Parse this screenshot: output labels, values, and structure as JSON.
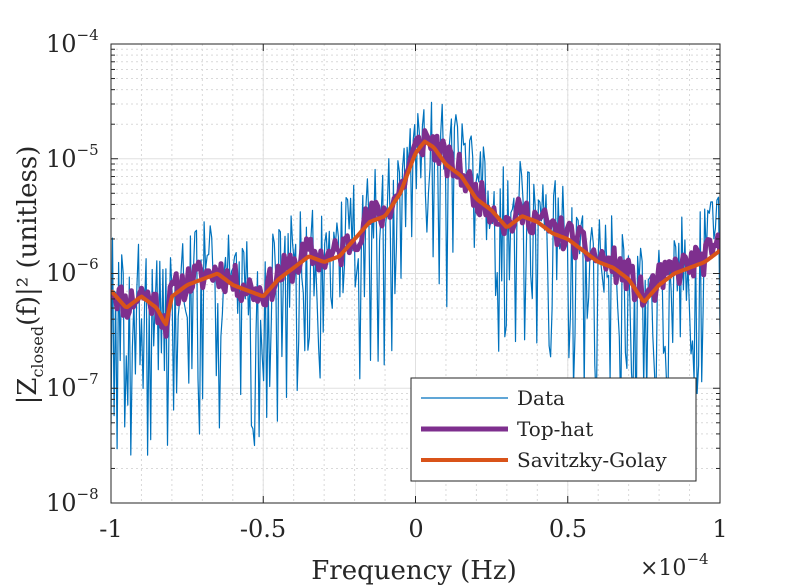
{
  "chart_data": {
    "type": "line",
    "title": "",
    "xlabel": "Frequency (Hz)",
    "xlabel_multiplier": "×10",
    "xlabel_multiplier_exp": "−4",
    "ylabel_main": "|Z",
    "ylabel_sub": "closed",
    "ylabel_rest": "(f)|² (unitless)",
    "xlim": [
      -0.0001,
      0.0001
    ],
    "ylim": [
      1e-08,
      0.0001
    ],
    "yscale": "log",
    "grid": true,
    "minor_grid": true,
    "legend_position": "bottom-right",
    "x_ticks": [
      {
        "value": -1,
        "label": "-1"
      },
      {
        "value": -0.5,
        "label": "-0.5"
      },
      {
        "value": 0,
        "label": "0"
      },
      {
        "value": 0.5,
        "label": "0.5"
      },
      {
        "value": 1,
        "label": "1"
      }
    ],
    "y_ticks": [
      {
        "exp": -8,
        "label": "10",
        "sup": "−8"
      },
      {
        "exp": -7,
        "label": "10",
        "sup": "−7"
      },
      {
        "exp": -6,
        "label": "10",
        "sup": "−6"
      },
      {
        "exp": -5,
        "label": "10",
        "sup": "−5"
      },
      {
        "exp": -4,
        "label": "10",
        "sup": "−4"
      }
    ],
    "series": [
      {
        "name": "Data",
        "color": "#0072BD",
        "width": 1.2,
        "generator": "noisy",
        "points": 400,
        "seed": 7
      },
      {
        "name": "Top-hat",
        "color": "#7E2F8E",
        "width": 5,
        "generator": "tophat",
        "points": 300,
        "seed": 11
      },
      {
        "name": "Savitzky-Golay",
        "color": "#D95319",
        "width": 4,
        "generator": "smooth",
        "points": 300
      }
    ],
    "envelope_x_e4": [
      -1.0,
      -0.95,
      -0.9,
      -0.85,
      -0.82,
      -0.8,
      -0.75,
      -0.7,
      -0.65,
      -0.6,
      -0.55,
      -0.5,
      -0.45,
      -0.4,
      -0.35,
      -0.3,
      -0.25,
      -0.2,
      -0.15,
      -0.1,
      -0.05,
      0.0,
      0.03,
      0.06,
      0.1,
      0.15,
      0.2,
      0.25,
      0.3,
      0.35,
      0.4,
      0.45,
      0.5,
      0.55,
      0.6,
      0.65,
      0.7,
      0.75,
      0.8,
      0.85,
      0.9,
      0.95,
      1.0
    ],
    "envelope_log10_y": [
      -6.15,
      -6.3,
      -6.2,
      -6.3,
      -6.45,
      -6.2,
      -6.1,
      -6.05,
      -6.0,
      -6.1,
      -6.15,
      -6.2,
      -6.05,
      -5.95,
      -5.85,
      -5.9,
      -5.85,
      -5.7,
      -5.55,
      -5.5,
      -5.3,
      -4.95,
      -4.85,
      -4.9,
      -5.05,
      -5.15,
      -5.35,
      -5.45,
      -5.6,
      -5.5,
      -5.55,
      -5.65,
      -5.7,
      -5.8,
      -5.9,
      -5.95,
      -6.05,
      -6.25,
      -6.1,
      -6.0,
      -5.95,
      -5.9,
      -5.8
    ]
  }
}
